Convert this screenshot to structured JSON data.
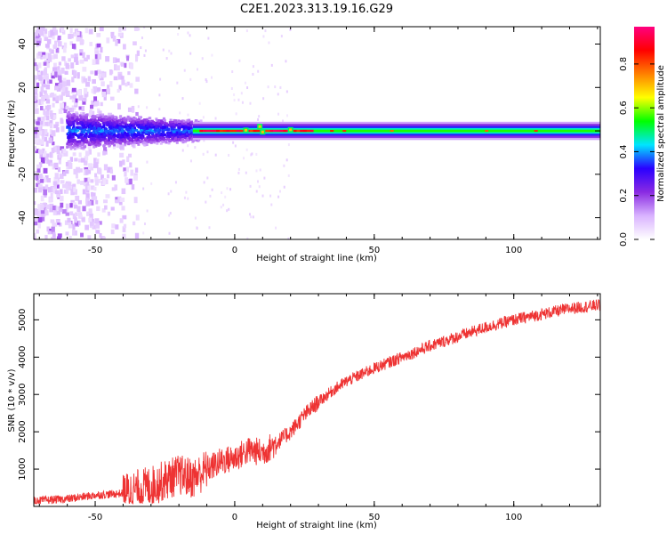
{
  "title": "C2E1.2023.313.19.16.G29",
  "chart_data": [
    {
      "type": "heatmap",
      "title": "C2E1.2023.313.19.16.G29",
      "xlabel": "Height of straight line (km)",
      "ylabel": "Frequency (Hz)",
      "xlim": [
        -72,
        131
      ],
      "ylim": [
        -50,
        48
      ],
      "xticks": [
        -50,
        0,
        50,
        100
      ],
      "yticks": [
        -40,
        -20,
        0,
        20,
        40
      ],
      "colorbar": {
        "label": "Normalized spectral amplitude",
        "range": [
          0,
          0.97
        ],
        "ticks": [
          0.0,
          0.2,
          0.4,
          0.6,
          0.8
        ],
        "colormap": [
          "#ffffff",
          "#d9b3ff",
          "#8a2be2",
          "#2a00ff",
          "#00e5ff",
          "#00ff00",
          "#ffff00",
          "#ff8000",
          "#ff0000",
          "#ff0080"
        ]
      },
      "features": [
        {
          "description_x": [
            -72,
            -35
          ],
          "frequency_spread_hz": [
            -50,
            48
          ],
          "amplitude": [
            0.0,
            0.2
          ]
        },
        {
          "description_x": [
            -60,
            -15
          ],
          "frequency_spread_hz": [
            -8,
            6
          ],
          "amplitude": [
            0.2,
            0.45
          ]
        },
        {
          "description_x": [
            -15,
            131
          ],
          "frequency_spread_hz": [
            -3,
            3
          ],
          "amplitude": [
            0.4,
            0.6
          ]
        },
        {
          "description_x": [
            -12,
            28
          ],
          "frequency_spread_hz": [
            -0.5,
            0.5
          ],
          "amplitude": [
            0.85,
            0.97
          ]
        }
      ]
    },
    {
      "type": "line",
      "title": "",
      "xlabel": "Height of straight line (km)",
      "ylabel": "SNR (10 * v/v)",
      "xlim": [
        -72,
        131
      ],
      "ylim": [
        0,
        5700
      ],
      "xticks": [
        -50,
        0,
        50,
        100
      ],
      "yticks": [
        1000,
        2000,
        3000,
        4000,
        5000
      ],
      "series": [
        {
          "color": "#ee3333",
          "x": [
            -72,
            -60,
            -50,
            -40,
            -35,
            -30,
            -25,
            -20,
            -15,
            -10,
            -5,
            0,
            5,
            10,
            15,
            20,
            25,
            30,
            35,
            40,
            50,
            60,
            70,
            80,
            90,
            100,
            110,
            120,
            131
          ],
          "values": [
            150,
            200,
            300,
            350,
            450,
            550,
            700,
            850,
            750,
            1000,
            1200,
            1300,
            1500,
            1450,
            1700,
            2000,
            2450,
            2800,
            3100,
            3350,
            3700,
            4000,
            4300,
            4550,
            4800,
            5000,
            5150,
            5300,
            5400
          ]
        }
      ]
    }
  ]
}
